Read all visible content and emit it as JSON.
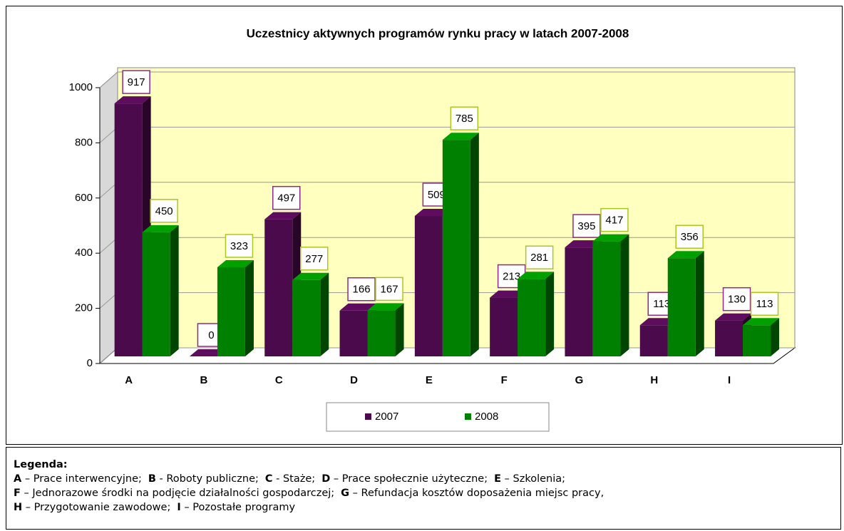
{
  "chart_data": {
    "type": "bar",
    "title": "Uczestnicy aktywnych programów rynku pracy w latach 2007-2008",
    "categories": [
      "A",
      "B",
      "C",
      "D",
      "E",
      "F",
      "G",
      "H",
      "I"
    ],
    "series": [
      {
        "name": "2007",
        "color": "#4b0a4b",
        "label_border": "#8b2a8b",
        "values": [
          917,
          0,
          497,
          166,
          509,
          213,
          395,
          113,
          130
        ]
      },
      {
        "name": "2008",
        "color": "#008000",
        "label_border": "#a8c820",
        "values": [
          450,
          323,
          277,
          167,
          785,
          281,
          417,
          356,
          113
        ]
      }
    ],
    "ylim": [
      0,
      1000
    ],
    "yticks": [
      0,
      200,
      400,
      600,
      800,
      1000
    ],
    "grid": true
  },
  "notes": {
    "title": "Legenda:",
    "lines": [
      [
        {
          "key": "A",
          "text": "– Prace interwencyjne;"
        },
        {
          "key": "B",
          "text": "- Roboty publiczne;"
        },
        {
          "key": "C",
          "text": "- Staże;"
        },
        {
          "key": "D",
          "text": "– Prace społecznie użyteczne;"
        },
        {
          "key": "E",
          "text": "– Szkolenia;"
        }
      ],
      [
        {
          "key": "F",
          "text": "– Jednorazowe środki na podjęcie działalności gospodarczej;"
        },
        {
          "key": "G",
          "text": "– Refundacja kosztów doposażenia miejsc pracy,"
        }
      ],
      [
        {
          "key": "H",
          "text": "– Przygotowanie zawodowe;"
        },
        {
          "key": "I",
          "text": "– Pozostałe programy"
        }
      ]
    ]
  }
}
